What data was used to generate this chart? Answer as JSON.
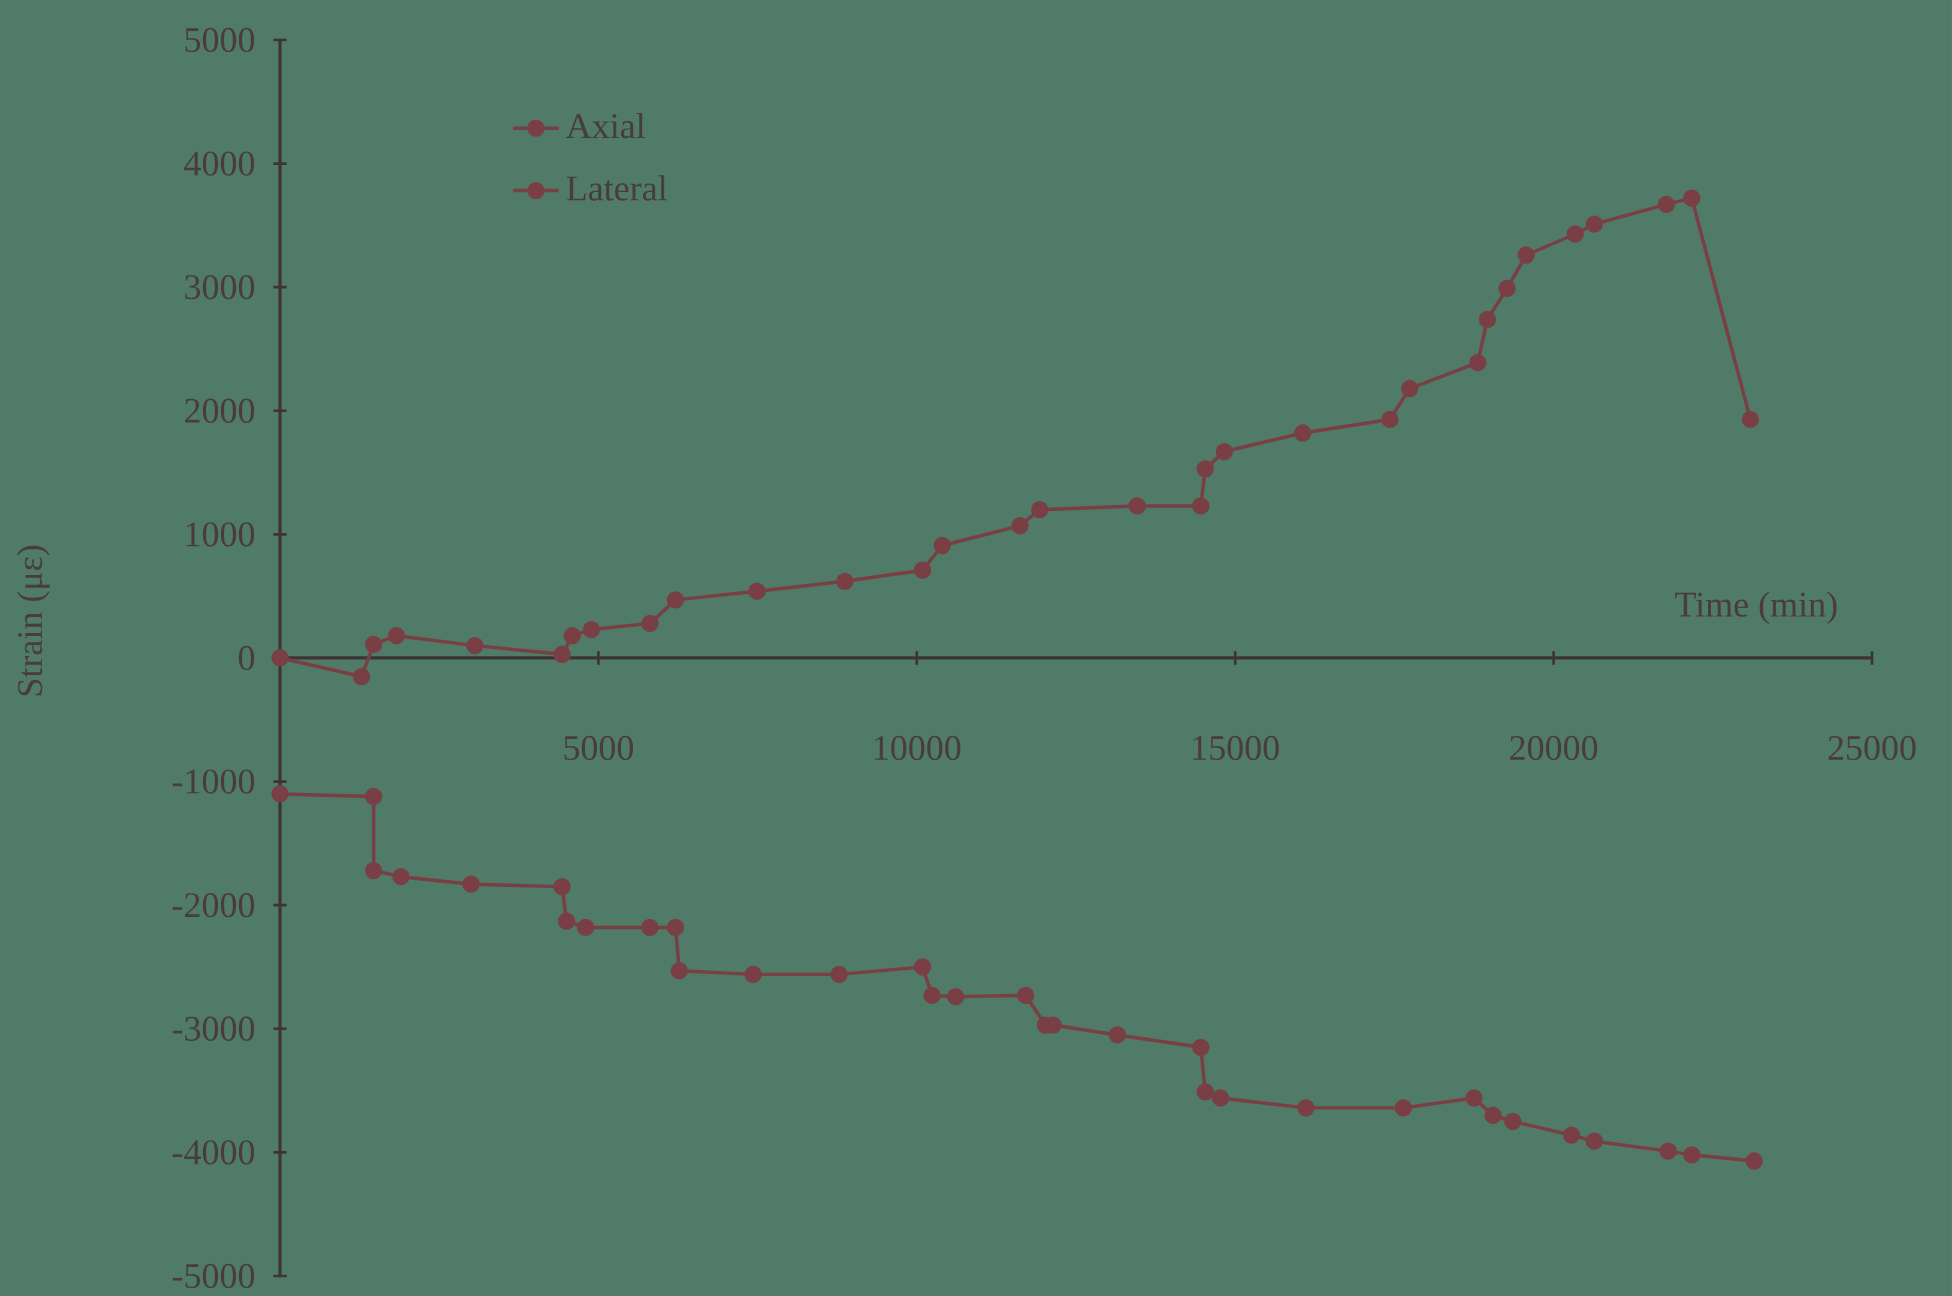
{
  "chart_data": {
    "type": "line",
    "xlabel": "Time (min)",
    "ylabel": "Strain (με)",
    "xlim": [
      0,
      25000
    ],
    "ylim": [
      -5000,
      5000
    ],
    "xticks": [
      5000,
      10000,
      15000,
      20000,
      25000
    ],
    "yticks": [
      -5000,
      -4000,
      -3000,
      -2000,
      -1000,
      0,
      1000,
      2000,
      3000,
      4000,
      5000
    ],
    "grid": false,
    "legend": "top left",
    "line_style": "solid",
    "marker": "circle",
    "series": [
      {
        "name": "Axial",
        "color": "#7a3f45",
        "x": [
          0,
          1470,
          1470,
          1900,
          3000,
          4430,
          4500,
          4800,
          5810,
          6210,
          6270,
          7430,
          8780,
          10090,
          10240,
          10610,
          11710,
          12020,
          12140,
          13150,
          14460,
          14530,
          14770,
          16110,
          17640,
          18750,
          19050,
          19360,
          20280,
          20640,
          21800,
          22170,
          23150
        ],
        "values": [
          -1100,
          -1120,
          -1720,
          -1770,
          -1830,
          -1850,
          -2130,
          -2180,
          -2180,
          -2180,
          -2530,
          -2560,
          -2560,
          -2500,
          -2730,
          -2740,
          -2730,
          -2970,
          -2970,
          -3050,
          -3150,
          -3510,
          -3560,
          -3640,
          -3640,
          -3560,
          -3700,
          -3750,
          -3860,
          -3910,
          -3990,
          -4020,
          -4070
        ]
      },
      {
        "name": "Lateral",
        "color": "#7a3f45",
        "x": [
          0,
          1280,
          1470,
          1830,
          3060,
          4430,
          4590,
          4890,
          5810,
          6210,
          7490,
          8870,
          10090,
          10400,
          11620,
          11930,
          13460,
          14460,
          14530,
          14830,
          16060,
          17430,
          17740,
          18810,
          18960,
          19270,
          19570,
          20340,
          20640,
          21770,
          22170,
          23090
        ],
        "values": [
          0,
          -150,
          110,
          180,
          100,
          30,
          180,
          230,
          280,
          470,
          540,
          620,
          710,
          910,
          1070,
          1200,
          1230,
          1230,
          1530,
          1670,
          1820,
          1930,
          2180,
          2390,
          2740,
          2990,
          3260,
          3430,
          3510,
          3670,
          3720,
          1930
        ]
      }
    ]
  }
}
